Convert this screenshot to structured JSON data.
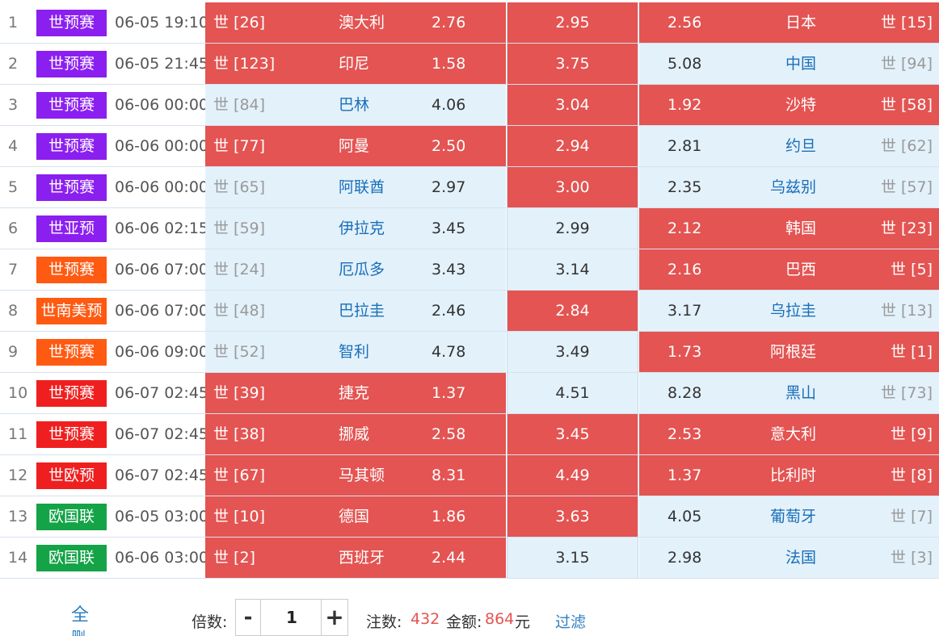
{
  "matches": [
    {
      "index": "1",
      "league": "世预赛",
      "league_color": "#8b1ff0",
      "time": "06-05 19:10",
      "home_rank": "世 [26]",
      "home_team": "澳大利",
      "home_odd": "2.76",
      "draw_odd": "2.95",
      "away_odd": "2.56",
      "away_team": "日本",
      "away_rank": "世 [15]",
      "home_selected": true,
      "draw_selected": true,
      "away_selected": true
    },
    {
      "index": "2",
      "league": "世预赛",
      "league_color": "#8b1ff0",
      "time": "06-05 21:45",
      "home_rank": "世 [123]",
      "home_team": "印尼",
      "home_odd": "1.58",
      "draw_odd": "3.75",
      "away_odd": "5.08",
      "away_team": "中国",
      "away_rank": "世 [94]",
      "home_selected": true,
      "draw_selected": true,
      "away_selected": false
    },
    {
      "index": "3",
      "league": "世预赛",
      "league_color": "#8b1ff0",
      "time": "06-06 00:00",
      "home_rank": "世 [84]",
      "home_team": "巴林",
      "home_odd": "4.06",
      "draw_odd": "3.04",
      "away_odd": "1.92",
      "away_team": "沙特",
      "away_rank": "世 [58]",
      "home_selected": false,
      "draw_selected": true,
      "away_selected": true
    },
    {
      "index": "4",
      "league": "世预赛",
      "league_color": "#8b1ff0",
      "time": "06-06 00:00",
      "home_rank": "世 [77]",
      "home_team": "阿曼",
      "home_odd": "2.50",
      "draw_odd": "2.94",
      "away_odd": "2.81",
      "away_team": "约旦",
      "away_rank": "世 [62]",
      "home_selected": true,
      "draw_selected": true,
      "away_selected": false
    },
    {
      "index": "5",
      "league": "世预赛",
      "league_color": "#8b1ff0",
      "time": "06-06 00:00",
      "home_rank": "世 [65]",
      "home_team": "阿联酋",
      "home_odd": "2.97",
      "draw_odd": "3.00",
      "away_odd": "2.35",
      "away_team": "乌兹别",
      "away_rank": "世 [57]",
      "home_selected": false,
      "draw_selected": true,
      "away_selected": false
    },
    {
      "index": "6",
      "league": "世亚预",
      "league_color": "#8b1ff0",
      "time": "06-06 02:15",
      "home_rank": "世 [59]",
      "home_team": "伊拉克",
      "home_odd": "3.45",
      "draw_odd": "2.99",
      "away_odd": "2.12",
      "away_team": "韩国",
      "away_rank": "世 [23]",
      "home_selected": false,
      "draw_selected": false,
      "away_selected": true
    },
    {
      "index": "7",
      "league": "世预赛",
      "league_color": "#ff5a12",
      "time": "06-06 07:00",
      "home_rank": "世 [24]",
      "home_team": "厄瓜多",
      "home_odd": "3.43",
      "draw_odd": "3.14",
      "away_odd": "2.16",
      "away_team": "巴西",
      "away_rank": "世 [5]",
      "home_selected": false,
      "draw_selected": false,
      "away_selected": true
    },
    {
      "index": "8",
      "league": "世南美预",
      "league_color": "#ff5a12",
      "time": "06-06 07:00",
      "home_rank": "世 [48]",
      "home_team": "巴拉圭",
      "home_odd": "2.46",
      "draw_odd": "2.84",
      "away_odd": "3.17",
      "away_team": "乌拉圭",
      "away_rank": "世 [13]",
      "home_selected": false,
      "draw_selected": true,
      "away_selected": false
    },
    {
      "index": "9",
      "league": "世预赛",
      "league_color": "#ff5a12",
      "time": "06-06 09:00",
      "home_rank": "世 [52]",
      "home_team": "智利",
      "home_odd": "4.78",
      "draw_odd": "3.49",
      "away_odd": "1.73",
      "away_team": "阿根廷",
      "away_rank": "世 [1]",
      "home_selected": false,
      "draw_selected": false,
      "away_selected": true
    },
    {
      "index": "10",
      "league": "世预赛",
      "league_color": "#f01f1f",
      "time": "06-07 02:45",
      "home_rank": "世 [39]",
      "home_team": "捷克",
      "home_odd": "1.37",
      "draw_odd": "4.51",
      "away_odd": "8.28",
      "away_team": "黑山",
      "away_rank": "世 [73]",
      "home_selected": true,
      "draw_selected": false,
      "away_selected": false
    },
    {
      "index": "11",
      "league": "世预赛",
      "league_color": "#f01f1f",
      "time": "06-07 02:45",
      "home_rank": "世 [38]",
      "home_team": "挪威",
      "home_odd": "2.58",
      "draw_odd": "3.45",
      "away_odd": "2.53",
      "away_team": "意大利",
      "away_rank": "世 [9]",
      "home_selected": true,
      "draw_selected": true,
      "away_selected": true
    },
    {
      "index": "12",
      "league": "世欧预",
      "league_color": "#f01f1f",
      "time": "06-07 02:45",
      "home_rank": "世 [67]",
      "home_team": "马其顿",
      "home_odd": "8.31",
      "draw_odd": "4.49",
      "away_odd": "1.37",
      "away_team": "比利时",
      "away_rank": "世 [8]",
      "home_selected": true,
      "draw_selected": true,
      "away_selected": true
    },
    {
      "index": "13",
      "league": "欧国联",
      "league_color": "#14a347",
      "time": "06-05 03:00",
      "home_rank": "世 [10]",
      "home_team": "德国",
      "home_odd": "1.86",
      "draw_odd": "3.63",
      "away_odd": "4.05",
      "away_team": "葡萄牙",
      "away_rank": "世 [7]",
      "home_selected": true,
      "draw_selected": true,
      "away_selected": false
    },
    {
      "index": "14",
      "league": "欧国联",
      "league_color": "#14a347",
      "time": "06-06 03:00",
      "home_rank": "世 [2]",
      "home_team": "西班牙",
      "home_odd": "2.44",
      "draw_odd": "3.15",
      "away_odd": "2.98",
      "away_team": "法国",
      "away_rank": "世 [3]",
      "home_selected": true,
      "draw_selected": false,
      "away_selected": false
    }
  ],
  "footer": {
    "all_label": "全",
    "all_label_cut": "删",
    "multiplier_label": "倍数:",
    "minus": "-",
    "multiplier_value": "1",
    "plus": "+",
    "bets_label": "注数:",
    "bets_value": "432",
    "amount_label": "金额:",
    "amount_value": "864",
    "amount_unit": "元",
    "filter_label": "过滤"
  },
  "colors": {
    "selected": "#e35452",
    "unselected": "#e3f1fb",
    "link": "#2f7fc1"
  }
}
